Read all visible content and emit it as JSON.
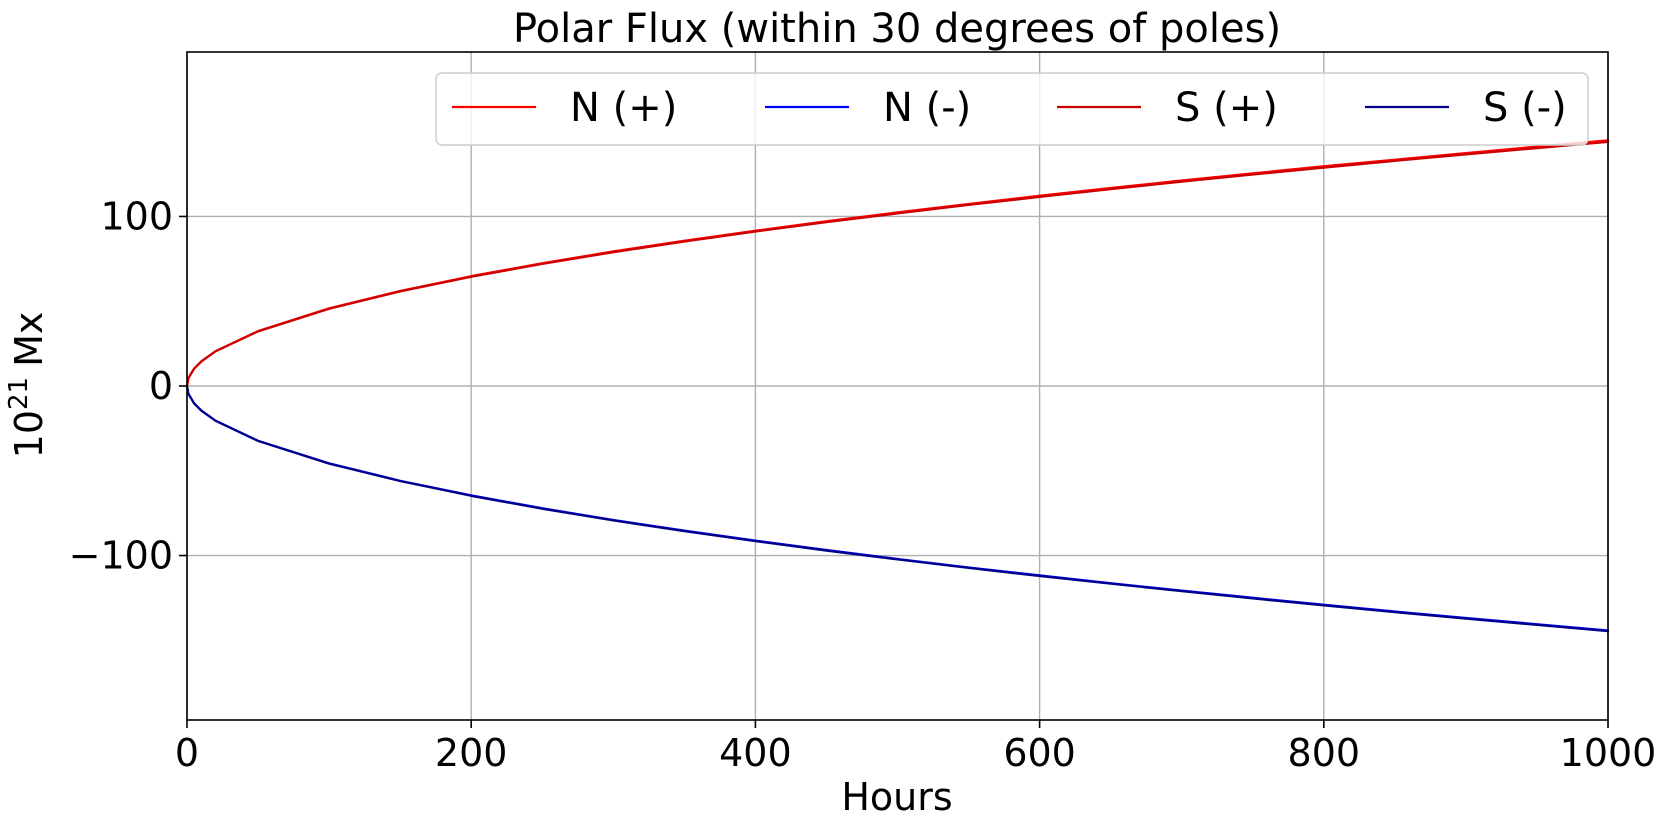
{
  "chart_data": {
    "type": "line",
    "title": "Polar Flux (within 30 degrees of poles)",
    "xlabel": "Hours",
    "ylabel_base": "10",
    "ylabel_exponent": "21",
    "ylabel_unit": "Mx",
    "xlim": [
      0,
      1000
    ],
    "ylim": [
      -197,
      197
    ],
    "xticks": [
      0,
      200,
      400,
      600,
      800,
      1000
    ],
    "xtick_labels": [
      "0",
      "200",
      "400",
      "600",
      "800",
      "1000"
    ],
    "yticks": [
      -100,
      0,
      100
    ],
    "ytick_labels": [
      "−100",
      "0",
      "100"
    ],
    "grid": true,
    "legend_position": "top-right",
    "x": [
      0,
      1,
      5,
      10,
      20,
      50,
      100,
      150,
      200,
      250,
      300,
      350,
      400,
      450,
      500,
      550,
      600,
      650,
      700,
      750,
      800,
      850,
      900,
      950,
      1000
    ],
    "series": [
      {
        "name": "N (+)",
        "color": "#ff0000",
        "values": [
          0,
          4.6,
          10.3,
          14.5,
          20.5,
          32.4,
          45.8,
          56.1,
          64.8,
          72.4,
          79.4,
          85.7,
          91.6,
          97.2,
          102.4,
          107.4,
          112.2,
          116.8,
          121.2,
          125.4,
          129.6,
          133.5,
          137.4,
          141.2,
          144.9
        ]
      },
      {
        "name": "N (-)",
        "color": "#0000ff",
        "values": [
          0,
          -4.6,
          -10.2,
          -14.4,
          -20.4,
          -32.3,
          -45.6,
          -55.9,
          -64.5,
          -72.1,
          -79.0,
          -85.3,
          -91.2,
          -96.7,
          -102.0,
          -107.0,
          -111.7,
          -116.3,
          -120.7,
          -124.9,
          -129.0,
          -133.0,
          -136.8,
          -140.5,
          -144.2
        ]
      },
      {
        "name": "S (+)",
        "color": "#cc0000",
        "values": [
          0,
          4.6,
          10.2,
          14.4,
          20.4,
          32.2,
          45.5,
          55.8,
          64.4,
          72.0,
          78.9,
          85.2,
          91.1,
          96.6,
          101.8,
          106.8,
          111.5,
          116.1,
          120.5,
          124.7,
          128.8,
          132.8,
          136.6,
          140.3,
          144.0
        ]
      },
      {
        "name": "S (-)",
        "color": "#00008b",
        "values": [
          0,
          -4.6,
          -10.3,
          -14.5,
          -20.5,
          -32.4,
          -45.8,
          -56.1,
          -64.8,
          -72.4,
          -79.3,
          -85.6,
          -91.5,
          -97.1,
          -102.3,
          -107.3,
          -112.1,
          -116.6,
          -121.0,
          -125.3,
          -129.4,
          -133.4,
          -137.2,
          -140.9,
          -144.6
        ]
      }
    ]
  }
}
